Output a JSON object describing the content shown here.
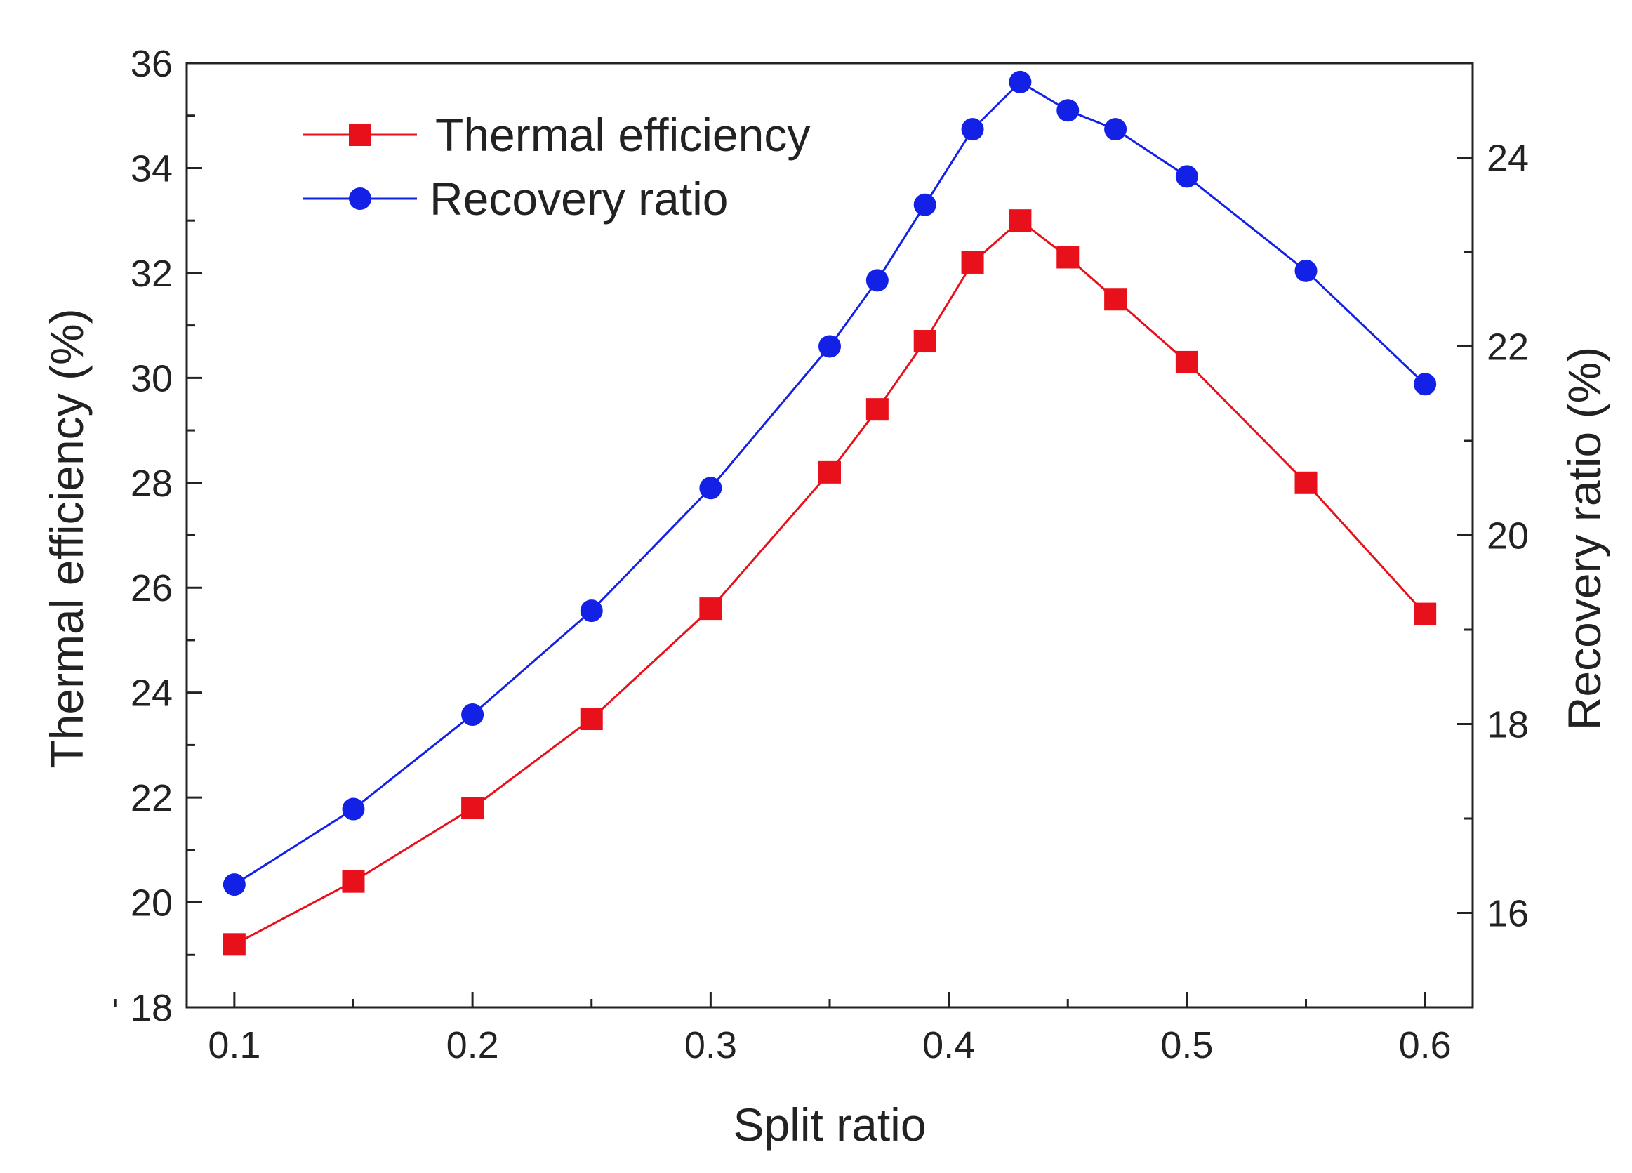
{
  "chart_data": {
    "type": "line",
    "title": "",
    "xlabel": "Split ratio",
    "ylabel_left": "Thermal efficiency (%)",
    "ylabel_right": "Recovery ratio (%)",
    "xlim": [
      0.08,
      0.62
    ],
    "ylim_left": [
      18,
      36
    ],
    "ylim_right": [
      15,
      25
    ],
    "x_ticks": [
      "0.1",
      "0.2",
      "0.3",
      "0.4",
      "0.5",
      "0.6"
    ],
    "y_left_ticks": [
      "18",
      "20",
      "22",
      "24",
      "26",
      "28",
      "30",
      "32",
      "34",
      "36"
    ],
    "y_right_ticks": [
      "16",
      "18",
      "20",
      "22",
      "24"
    ],
    "grid": false,
    "legend_position": "top-left",
    "x": [
      0.1,
      0.15,
      0.2,
      0.25,
      0.3,
      0.35,
      0.37,
      0.39,
      0.41,
      0.43,
      0.45,
      0.47,
      0.5,
      0.55,
      0.6
    ],
    "series": [
      {
        "name": "Thermal efficiency",
        "axis": "left",
        "marker": "square",
        "color": "#e8101a",
        "values": [
          19.2,
          20.4,
          21.8,
          23.5,
          25.6,
          28.2,
          29.4,
          30.7,
          32.2,
          33.0,
          32.3,
          31.5,
          30.3,
          28.0,
          25.5
        ]
      },
      {
        "name": "Recovery ratio",
        "axis": "right",
        "marker": "circle",
        "color": "#1320e6",
        "values": [
          16.3,
          17.1,
          18.1,
          19.2,
          20.5,
          22.0,
          22.7,
          23.5,
          24.3,
          24.8,
          24.5,
          24.3,
          23.8,
          22.8,
          21.6
        ]
      }
    ]
  }
}
